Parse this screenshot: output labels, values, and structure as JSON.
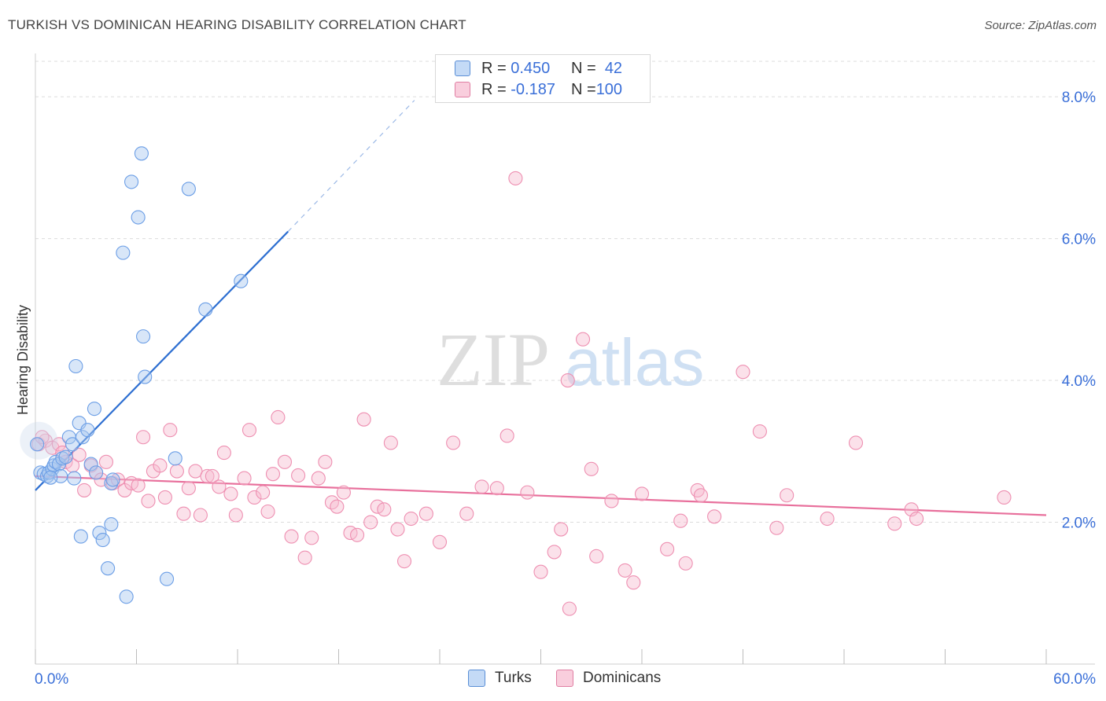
{
  "header": {
    "title": "TURKISH VS DOMINICAN HEARING DISABILITY CORRELATION CHART",
    "source": "Source: ZipAtlas.com"
  },
  "legend": {
    "rows": [
      {
        "r_label": "R = ",
        "r_value": "0.450",
        "n_label": "N = ",
        "n_value": "42",
        "color": "#a9c8f0",
        "border": "#5b8fd6"
      },
      {
        "r_label": "R = ",
        "r_value": "-0.187",
        "n_label": "N = ",
        "n_value": "100",
        "color": "#f6bcd0",
        "border": "#e07fa3"
      }
    ]
  },
  "bottom_legend": {
    "items": [
      {
        "label": "Turks",
        "color": "#a9c8f0",
        "border": "#5b8fd6"
      },
      {
        "label": "Dominicans",
        "color": "#f6bcd0",
        "border": "#e07fa3"
      }
    ]
  },
  "watermark": {
    "part1": "ZIP",
    "part2": "atlas"
  },
  "chart_data": {
    "type": "scatter",
    "title": "TURKISH VS DOMINICAN HEARING DISABILITY CORRELATION CHART",
    "xlabel": "",
    "ylabel": "Hearing Disability",
    "xlim": [
      0,
      60
    ],
    "ylim": [
      0,
      8.5
    ],
    "x_tick_labels": [
      "0.0%",
      "60.0%"
    ],
    "y_ticks": [
      2,
      4,
      6,
      8
    ],
    "y_tick_labels": [
      "2.0%",
      "4.0%",
      "6.0%",
      "8.0%"
    ],
    "grid": true,
    "legend_position": "top-center",
    "colors": {
      "turks": "#6b9ee6",
      "turks_line": "#2e6fd1",
      "dominicans": "#ee8fb1",
      "dominicans_line": "#e8709c",
      "tick_label": "#3a6fd8"
    },
    "series": [
      {
        "name": "Turks",
        "trend": {
          "x": [
            0,
            15
          ],
          "y": [
            2.45,
            6.1
          ],
          "dashed_to": [
            22.5,
            7.95
          ]
        },
        "points": [
          [
            0.1,
            3.1
          ],
          [
            0.3,
            2.7
          ],
          [
            0.5,
            2.68
          ],
          [
            0.7,
            2.65
          ],
          [
            0.8,
            2.7
          ],
          [
            1.0,
            2.75
          ],
          [
            1.1,
            2.8
          ],
          [
            1.2,
            2.85
          ],
          [
            1.4,
            2.82
          ],
          [
            1.6,
            2.9
          ],
          [
            1.8,
            2.92
          ],
          [
            2.0,
            3.2
          ],
          [
            2.2,
            3.1
          ],
          [
            2.3,
            2.62
          ],
          [
            2.4,
            4.2
          ],
          [
            2.6,
            3.4
          ],
          [
            2.8,
            3.2
          ],
          [
            3.1,
            3.3
          ],
          [
            3.5,
            3.6
          ],
          [
            3.3,
            2.82
          ],
          [
            3.6,
            2.7
          ],
          [
            3.8,
            1.85
          ],
          [
            4.0,
            1.75
          ],
          [
            4.3,
            1.35
          ],
          [
            4.5,
            1.97
          ],
          [
            4.5,
            2.55
          ],
          [
            4.6,
            2.6
          ],
          [
            5.2,
            5.8
          ],
          [
            5.7,
            6.8
          ],
          [
            5.4,
            0.95
          ],
          [
            6.1,
            6.3
          ],
          [
            6.5,
            4.05
          ],
          [
            6.3,
            7.2
          ],
          [
            6.4,
            4.62
          ],
          [
            7.8,
            1.2
          ],
          [
            8.3,
            2.9
          ],
          [
            9.1,
            6.7
          ],
          [
            10.1,
            5.0
          ],
          [
            12.2,
            5.4
          ],
          [
            1.5,
            2.65
          ],
          [
            2.7,
            1.8
          ],
          [
            0.9,
            2.63
          ]
        ]
      },
      {
        "name": "Dominicans",
        "trend": {
          "x": [
            0,
            60
          ],
          "y": [
            2.65,
            2.1
          ]
        },
        "points": [
          [
            0.2,
            3.1
          ],
          [
            0.6,
            3.15
          ],
          [
            1.0,
            3.05
          ],
          [
            1.4,
            3.1
          ],
          [
            1.8,
            2.85
          ],
          [
            2.2,
            2.8
          ],
          [
            2.6,
            2.95
          ],
          [
            2.9,
            2.45
          ],
          [
            3.3,
            2.8
          ],
          [
            3.6,
            2.7
          ],
          [
            3.9,
            2.6
          ],
          [
            4.2,
            2.85
          ],
          [
            4.6,
            2.55
          ],
          [
            4.9,
            2.6
          ],
          [
            5.3,
            2.45
          ],
          [
            5.7,
            2.55
          ],
          [
            6.1,
            2.52
          ],
          [
            6.4,
            3.2
          ],
          [
            6.7,
            2.3
          ],
          [
            7.0,
            2.72
          ],
          [
            7.4,
            2.8
          ],
          [
            7.7,
            2.35
          ],
          [
            8.0,
            3.3
          ],
          [
            8.4,
            2.72
          ],
          [
            8.8,
            2.12
          ],
          [
            9.1,
            2.48
          ],
          [
            9.5,
            2.72
          ],
          [
            9.8,
            2.1
          ],
          [
            10.2,
            2.65
          ],
          [
            10.5,
            2.65
          ],
          [
            10.9,
            2.5
          ],
          [
            11.2,
            2.98
          ],
          [
            11.6,
            2.4
          ],
          [
            11.9,
            2.1
          ],
          [
            12.4,
            2.62
          ],
          [
            12.7,
            3.3
          ],
          [
            13.0,
            2.35
          ],
          [
            13.5,
            2.42
          ],
          [
            13.8,
            2.15
          ],
          [
            14.1,
            2.68
          ],
          [
            14.4,
            3.48
          ],
          [
            14.8,
            2.85
          ],
          [
            15.2,
            1.8
          ],
          [
            15.6,
            2.66
          ],
          [
            16.0,
            1.5
          ],
          [
            16.4,
            1.78
          ],
          [
            16.8,
            2.62
          ],
          [
            17.2,
            2.85
          ],
          [
            17.6,
            2.28
          ],
          [
            17.9,
            2.22
          ],
          [
            18.3,
            2.42
          ],
          [
            18.7,
            1.85
          ],
          [
            19.1,
            1.82
          ],
          [
            19.5,
            3.45
          ],
          [
            19.9,
            2.0
          ],
          [
            20.3,
            2.22
          ],
          [
            20.7,
            2.18
          ],
          [
            21.1,
            3.12
          ],
          [
            21.5,
            1.9
          ],
          [
            21.9,
            1.45
          ],
          [
            22.3,
            2.05
          ],
          [
            23.2,
            2.12
          ],
          [
            24.0,
            1.72
          ],
          [
            24.8,
            3.12
          ],
          [
            25.6,
            2.12
          ],
          [
            26.5,
            2.5
          ],
          [
            27.4,
            2.48
          ],
          [
            28.0,
            3.22
          ],
          [
            28.5,
            6.85
          ],
          [
            29.2,
            2.42
          ],
          [
            30.0,
            1.3
          ],
          [
            30.8,
            1.58
          ],
          [
            31.2,
            1.9
          ],
          [
            31.6,
            4.0
          ],
          [
            31.7,
            0.78
          ],
          [
            32.5,
            4.58
          ],
          [
            33.0,
            2.75
          ],
          [
            33.3,
            1.52
          ],
          [
            34.2,
            2.3
          ],
          [
            35.0,
            1.32
          ],
          [
            35.5,
            1.15
          ],
          [
            36.0,
            2.4
          ],
          [
            37.5,
            1.62
          ],
          [
            38.3,
            2.02
          ],
          [
            38.6,
            1.42
          ],
          [
            39.3,
            2.45
          ],
          [
            39.5,
            2.38
          ],
          [
            40.3,
            2.08
          ],
          [
            42.0,
            4.12
          ],
          [
            43.0,
            3.28
          ],
          [
            44.0,
            1.92
          ],
          [
            44.6,
            2.38
          ],
          [
            47.0,
            2.05
          ],
          [
            48.7,
            3.12
          ],
          [
            51.0,
            1.98
          ],
          [
            52.0,
            2.18
          ],
          [
            52.3,
            2.05
          ],
          [
            57.5,
            2.35
          ],
          [
            0.4,
            3.2
          ],
          [
            1.6,
            2.98
          ]
        ]
      }
    ]
  }
}
